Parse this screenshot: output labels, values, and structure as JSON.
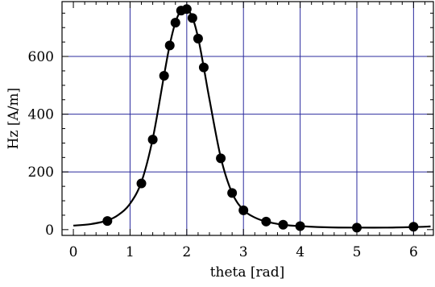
{
  "chart_data": {
    "type": "scatter",
    "xlabel": "theta [rad]",
    "ylabel": "Hz [A/m]",
    "xlim": [
      -0.2,
      6.35
    ],
    "ylim": [
      -20,
      790
    ],
    "xticks": [
      0,
      1,
      2,
      3,
      4,
      5,
      6
    ],
    "yticks": [
      0,
      200,
      400,
      600
    ],
    "grid": true,
    "grid_x": [
      1,
      2,
      3,
      4,
      5,
      6
    ],
    "grid_y": [
      200,
      400,
      600
    ],
    "colors": {
      "grid": "#2b2b9e",
      "marker": "#000000",
      "curve": "#000000"
    },
    "points": {
      "x": [
        0.6,
        1.2,
        1.4,
        1.6,
        1.7,
        1.8,
        1.9,
        2.0,
        2.1,
        2.2,
        2.3,
        2.6,
        2.8,
        3.0,
        3.4,
        3.7,
        4.0,
        5.0,
        6.0
      ],
      "y": [
        30,
        160,
        312,
        533,
        638,
        717,
        759,
        764,
        733,
        662,
        562,
        247,
        127,
        67,
        28,
        17,
        12,
        7,
        10
      ]
    },
    "curve": {
      "x": [
        0.0,
        0.3,
        0.6,
        0.8,
        1.0,
        1.2,
        1.4,
        1.6,
        1.7,
        1.8,
        1.9,
        2.0,
        2.1,
        2.2,
        2.3,
        2.4,
        2.6,
        2.8,
        3.0,
        3.2,
        3.4,
        3.7,
        4.0,
        4.5,
        5.0,
        5.5,
        6.0,
        6.3
      ],
      "y": [
        14,
        19,
        32,
        52,
        90,
        165,
        315,
        535,
        640,
        718,
        760,
        765,
        735,
        665,
        562,
        452,
        250,
        127,
        68,
        42,
        28,
        17,
        12,
        8,
        7,
        7,
        9,
        11
      ]
    }
  }
}
